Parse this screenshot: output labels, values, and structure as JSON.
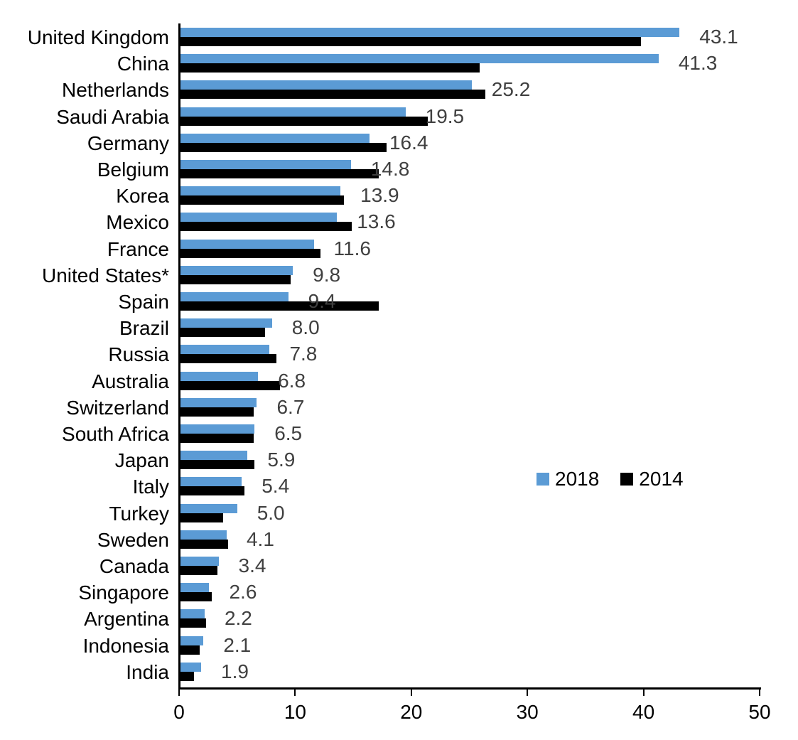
{
  "chart_data": {
    "type": "bar",
    "orientation": "horizontal",
    "categories": [
      "United Kingdom",
      "China",
      "Netherlands",
      "Saudi Arabia",
      "Germany",
      "Belgium",
      "Korea",
      "Mexico",
      "France",
      "United States*",
      "Spain",
      "Brazil",
      "Russia",
      "Australia",
      "Switzerland",
      "South Africa",
      "Japan",
      "Italy",
      "Turkey",
      "Sweden",
      "Canada",
      "Singapore",
      "Argentina",
      "Indonesia",
      "India"
    ],
    "series": [
      {
        "name": "2018",
        "color": "#5B9BD5",
        "values": [
          43.1,
          41.3,
          25.2,
          19.5,
          16.4,
          14.8,
          13.9,
          13.6,
          11.6,
          9.8,
          9.4,
          8.0,
          7.8,
          6.8,
          6.7,
          6.5,
          5.9,
          5.4,
          5.0,
          4.1,
          3.4,
          2.6,
          2.2,
          2.1,
          1.9
        ],
        "labels": [
          "43.1",
          "41.3",
          "25.2",
          "19.5",
          "16.4",
          "14.8",
          "13.9",
          "13.6",
          "11.6",
          "9.8",
          "9.4",
          "8.0",
          "7.8",
          "6.8",
          "6.7",
          "6.5",
          "5.9",
          "5.4",
          "5.0",
          "4.1",
          "3.4",
          "2.6",
          "2.2",
          "2.1",
          "1.9"
        ]
      },
      {
        "name": "2014",
        "color": "#000000",
        "values": [
          39.8,
          25.9,
          26.4,
          21.4,
          17.9,
          17.2,
          14.2,
          14.9,
          12.2,
          9.6,
          17.2,
          7.4,
          8.4,
          8.7,
          6.4,
          6.4,
          6.5,
          5.6,
          3.8,
          4.2,
          3.3,
          2.8,
          2.3,
          1.8,
          1.3
        ],
        "labels": []
      }
    ],
    "title": "",
    "xlabel": "",
    "ylabel": "",
    "xlim": [
      0,
      50
    ],
    "x_ticks": [
      0,
      10,
      20,
      30,
      40,
      50
    ],
    "grid": false,
    "legend_position": "middle-right",
    "value_label_color": "#404040",
    "data_labels_on_series": "2018"
  },
  "legend": {
    "items": [
      {
        "label": "2018",
        "color": "#5B9BD5"
      },
      {
        "label": "2014",
        "color": "#000000"
      }
    ]
  }
}
